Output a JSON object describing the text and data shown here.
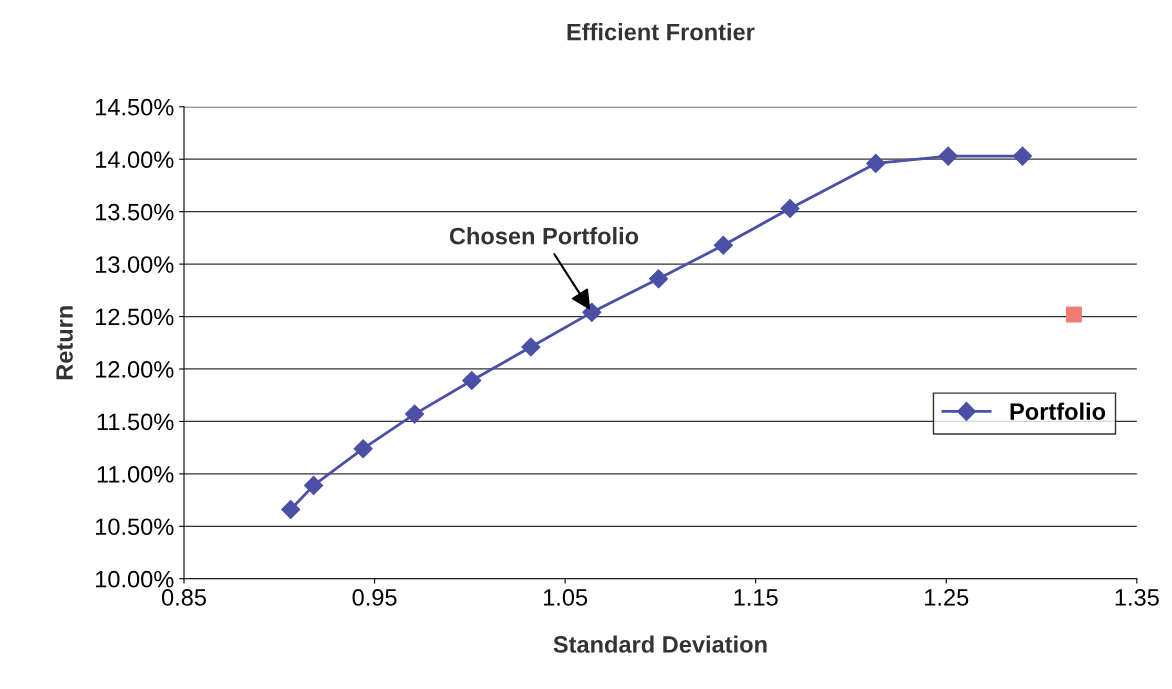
{
  "chart_data": {
    "type": "line",
    "title": "Efficient Frontier",
    "xlabel": "Standard Deviation",
    "ylabel": "Return",
    "series": [
      {
        "name": "Portfolio",
        "color": "#4b4fa6",
        "marker": "diamond",
        "x": [
          0.906,
          0.918,
          0.944,
          0.971,
          1.001,
          1.032,
          1.064,
          1.099,
          1.133,
          1.168,
          1.213,
          1.251,
          1.29
        ],
        "values": [
          10.66,
          10.89,
          11.24,
          11.57,
          11.89,
          12.21,
          12.54,
          12.86,
          13.18,
          13.53,
          13.96,
          14.03,
          14.03
        ]
      },
      {
        "type": "scatter",
        "color": "#f07c74",
        "marker": "square",
        "x": [
          1.317
        ],
        "values": [
          12.52
        ]
      }
    ],
    "xlim": [
      0.85,
      1.35
    ],
    "xticks": [
      {
        "value": 0.85,
        "label": "0.85"
      },
      {
        "value": 0.95,
        "label": "0.95"
      },
      {
        "value": 1.05,
        "label": "1.05"
      },
      {
        "value": 1.15,
        "label": "1.15"
      },
      {
        "value": 1.25,
        "label": "1.25"
      },
      {
        "value": 1.35,
        "label": "1.35"
      }
    ],
    "ylim": [
      10,
      14.5
    ],
    "yticks": [
      {
        "value": 10,
        "label": "10.00%"
      },
      {
        "value": 10.5,
        "label": "10.50%"
      },
      {
        "value": 11,
        "label": "11.00%"
      },
      {
        "value": 11.5,
        "label": "11.50%"
      },
      {
        "value": 12,
        "label": "12.00%"
      },
      {
        "value": 12.5,
        "label": "12.50%"
      },
      {
        "value": 13,
        "label": "13.00%"
      },
      {
        "value": 13.5,
        "label": "13.50%"
      },
      {
        "value": 14,
        "label": "14.00%"
      },
      {
        "value": 14.5,
        "label": "14.50%"
      }
    ],
    "grid": "y",
    "legend": "right",
    "annotations": [
      {
        "text": "Chosen Portfolio",
        "x": 1.064,
        "y": 12.54
      }
    ]
  }
}
